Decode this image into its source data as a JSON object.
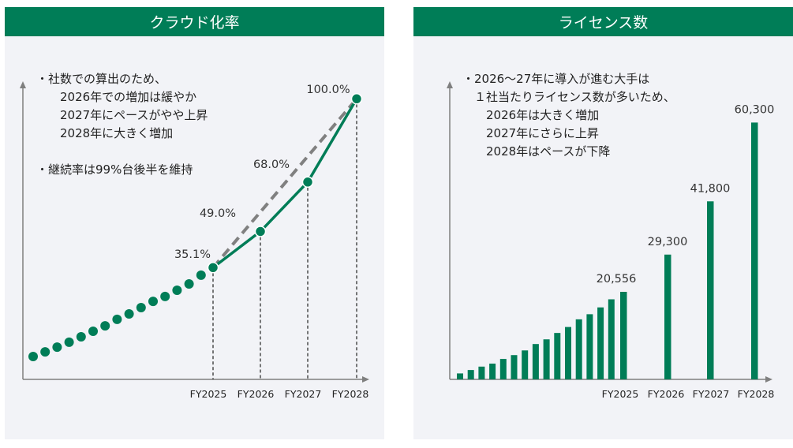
{
  "colors": {
    "accent": "#007d57",
    "panel_bg": "#f2f3f7",
    "axis": "#7f7f7f",
    "dashed_trend": "#808080"
  },
  "chart_data": [
    {
      "type": "line",
      "title": "クラウド化率",
      "xlabel": "",
      "ylabel": "",
      "ylim": [
        0,
        100
      ],
      "grid": false,
      "categories": [
        "FY2025",
        "FY2026",
        "FY2027",
        "FY2028"
      ],
      "history_series": {
        "name": "actual (pre-FY2025, estimated)",
        "values": [
          0.9,
          2.7,
          4.5,
          6.4,
          8.5,
          10.6,
          12.7,
          15.2,
          17.3,
          19.7,
          22.1,
          24.0,
          26.4,
          28.8,
          32.2
        ]
      },
      "series": [
        {
          "name": "forecast",
          "values": [
            35.1,
            49.0,
            68.0,
            100.0
          ]
        },
        {
          "name": "linear trend (dashed)",
          "values": [
            35.1,
            null,
            null,
            100.0
          ]
        }
      ],
      "data_labels": [
        "35.1%",
        "49.0%",
        "68.0%",
        "100.0%"
      ],
      "notes": [
        "・社数での算出のため、",
        "　　2026年での増加は緩やか",
        "　　2027年にペースがやや上昇",
        "　　2028年に大きく増加",
        "",
        "・継続率は99%台後半を維持"
      ]
    },
    {
      "type": "bar",
      "title": "ライセンス数",
      "xlabel": "",
      "ylabel": "",
      "ylim": [
        0,
        65000
      ],
      "grid": false,
      "categories": [
        "FY2025",
        "FY2026",
        "FY2027",
        "FY2028"
      ],
      "history_series": {
        "name": "actual (pre-FY2025, estimated)",
        "values": [
          1400,
          2200,
          3000,
          3700,
          4800,
          5700,
          6800,
          8300,
          9400,
          10900,
          12300,
          14100,
          15300,
          16900,
          18800
        ]
      },
      "series": [
        {
          "name": "licenses",
          "values": [
            20556,
            29300,
            41800,
            60300
          ]
        }
      ],
      "data_labels": [
        "20,556",
        "29,300",
        "41,800",
        "60,300"
      ],
      "notes": [
        "・2026～27年に導入が進む大手は",
        "　１社当たりライセンス数が多いため、",
        "　　2026年は大きく増加",
        "　　2027年にさらに上昇",
        "　　2028年はペースが下降"
      ]
    }
  ]
}
